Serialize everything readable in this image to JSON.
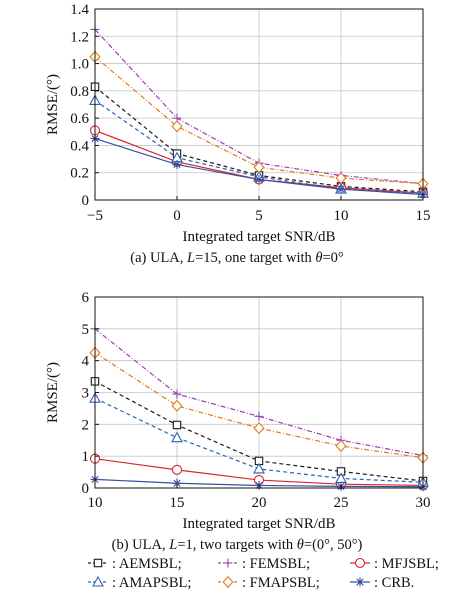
{
  "chart_data": [
    {
      "type": "line",
      "ylabel": "RMSE/(°)",
      "xlabel": "Integrated target SNR/dB",
      "caption": "(a) ULA, L=15, one target with θ=0°",
      "caption_parts": [
        "(a) ULA, ",
        "L",
        "=15, one target with ",
        "θ",
        "=0°"
      ],
      "x": [
        -5,
        0,
        5,
        10,
        15
      ],
      "xticks": [
        "−5",
        "0",
        "5",
        "10",
        "15"
      ],
      "xlim": [
        -5,
        15
      ],
      "ylim": [
        0,
        1.4
      ],
      "yticks": [
        "0",
        "0.2",
        "0.4",
        "0.6",
        "0.8",
        "1.0",
        "1.2",
        "1.4"
      ],
      "ytick_values": [
        0,
        0.2,
        0.4,
        0.6,
        0.8,
        1.0,
        1.2,
        1.4
      ],
      "grid": true,
      "series": [
        {
          "key": "aemsbl",
          "values": [
            0.83,
            0.34,
            0.18,
            0.1,
            0.06
          ]
        },
        {
          "key": "femsbl",
          "values": [
            1.25,
            0.6,
            0.27,
            0.18,
            0.12
          ]
        },
        {
          "key": "mfjsbl",
          "values": [
            0.51,
            0.28,
            0.15,
            0.09,
            0.05
          ]
        },
        {
          "key": "amapsbl",
          "values": [
            0.73,
            0.31,
            0.17,
            0.08,
            0.05
          ]
        },
        {
          "key": "fmapsbl",
          "values": [
            1.05,
            0.54,
            0.24,
            0.16,
            0.12
          ]
        },
        {
          "key": "crb",
          "values": [
            0.45,
            0.26,
            0.15,
            0.08,
            0.04
          ]
        }
      ]
    },
    {
      "type": "line",
      "ylabel": "RMSE/(°)",
      "xlabel": "Integrated target SNR/dB",
      "caption": "(b) ULA, L=1, two targets with θ=(0°, 50°)",
      "caption_parts": [
        "(b) ULA, ",
        "L",
        "=1, two targets with ",
        "θ",
        "=(0°, 50°)"
      ],
      "x": [
        10,
        15,
        20,
        25,
        30
      ],
      "xticks": [
        "10",
        "15",
        "20",
        "25",
        "30"
      ],
      "xlim": [
        10,
        30
      ],
      "ylim": [
        0,
        6
      ],
      "yticks": [
        "0",
        "1",
        "2",
        "3",
        "4",
        "5",
        "6"
      ],
      "ytick_values": [
        0,
        1,
        2,
        3,
        4,
        5,
        6
      ],
      "grid": true,
      "series": [
        {
          "key": "aemsbl",
          "values": [
            3.35,
            1.98,
            0.85,
            0.52,
            0.22
          ]
        },
        {
          "key": "femsbl",
          "values": [
            5.0,
            2.95,
            2.25,
            1.5,
            1.02
          ]
        },
        {
          "key": "mfjsbl",
          "values": [
            0.92,
            0.57,
            0.25,
            0.12,
            0.08
          ]
        },
        {
          "key": "amapsbl",
          "values": [
            2.82,
            1.58,
            0.6,
            0.3,
            0.18
          ]
        },
        {
          "key": "fmapsbl",
          "values": [
            4.25,
            2.58,
            1.88,
            1.32,
            0.95
          ]
        },
        {
          "key": "crb",
          "values": [
            0.27,
            0.15,
            0.08,
            0.05,
            0.04
          ]
        }
      ]
    }
  ],
  "legend": {
    "items": [
      {
        "key": "aemsbl",
        "label": ": AEMSBL;"
      },
      {
        "key": "femsbl",
        "label": ": FEMSBL;"
      },
      {
        "key": "mfjsbl",
        "label": ": MFJSBL;"
      },
      {
        "key": "amapsbl",
        "label": ": AMAPSBL;"
      },
      {
        "key": "fmapsbl",
        "label": ": FMAPSBL;"
      },
      {
        "key": "crb",
        "label": ": CRB."
      }
    ]
  },
  "styles": {
    "aemsbl": {
      "color": "#1a1a1a",
      "dash": "4,3",
      "marker": "square"
    },
    "femsbl": {
      "color": "#9b3fb5",
      "dash": "5,2,1,2",
      "marker": "plus"
    },
    "mfjsbl": {
      "color": "#d62728",
      "dash": "",
      "marker": "circle"
    },
    "amapsbl": {
      "color": "#2a62b8",
      "dash": "4,3",
      "marker": "triangle"
    },
    "fmapsbl": {
      "color": "#e07b20",
      "dash": "5,2,1,2",
      "marker": "diamond"
    },
    "crb": {
      "color": "#3a4fa0",
      "dash": "",
      "marker": "star"
    }
  }
}
